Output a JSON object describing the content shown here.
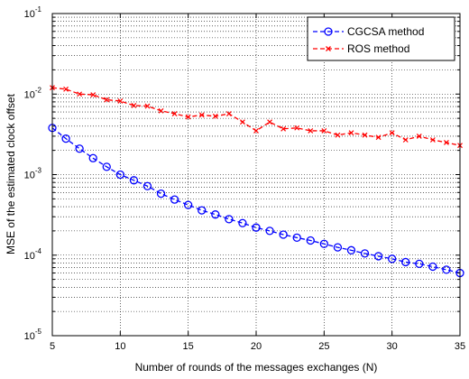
{
  "chart_data": {
    "type": "line",
    "title": "",
    "xlabel": "Number of rounds of the messages exchanges (N)",
    "ylabel": "MSE of the estimated clock offset",
    "xlim": [
      5,
      35
    ],
    "ylim": [
      1e-05,
      0.1
    ],
    "yscale": "log",
    "grid": true,
    "legend_position": "top-right",
    "x_ticks": [
      "5",
      "10",
      "15",
      "20",
      "25",
      "30",
      "35"
    ],
    "y_ticks": [
      {
        "base": "10",
        "exp": "-5"
      },
      {
        "base": "10",
        "exp": "-4"
      },
      {
        "base": "10",
        "exp": "-3"
      },
      {
        "base": "10",
        "exp": "-2"
      },
      {
        "base": "10",
        "exp": "-1"
      }
    ],
    "x": [
      5,
      6,
      7,
      8,
      9,
      10,
      11,
      12,
      13,
      14,
      15,
      16,
      17,
      18,
      19,
      20,
      21,
      22,
      23,
      24,
      25,
      26,
      27,
      28,
      29,
      30,
      31,
      32,
      33,
      34,
      35
    ],
    "series": [
      {
        "name": "CGCSA method",
        "color": "#0000ff",
        "style": "dashed",
        "marker": "circle",
        "values": [
          0.0038,
          0.0028,
          0.0021,
          0.0016,
          0.00125,
          0.001,
          0.00085,
          0.00072,
          0.00058,
          0.00049,
          0.00042,
          0.00036,
          0.00032,
          0.00028,
          0.00025,
          0.00022,
          0.0002,
          0.00018,
          0.000165,
          0.000152,
          0.000138,
          0.000125,
          0.000115,
          0.000105,
          9.7e-05,
          9e-05,
          8.2e-05,
          7.8e-05,
          7.2e-05,
          6.6e-05,
          6e-05
        ]
      },
      {
        "name": "ROS method",
        "color": "#ff0000",
        "style": "dashed",
        "marker": "x",
        "values": [
          0.012,
          0.0115,
          0.01,
          0.0098,
          0.0085,
          0.0082,
          0.0072,
          0.0071,
          0.0062,
          0.0057,
          0.0052,
          0.0055,
          0.0053,
          0.0057,
          0.0045,
          0.0035,
          0.0045,
          0.0037,
          0.0038,
          0.0035,
          0.0035,
          0.0031,
          0.0033,
          0.0031,
          0.0029,
          0.0033,
          0.0027,
          0.003,
          0.0027,
          0.0025,
          0.0023
        ]
      }
    ]
  }
}
